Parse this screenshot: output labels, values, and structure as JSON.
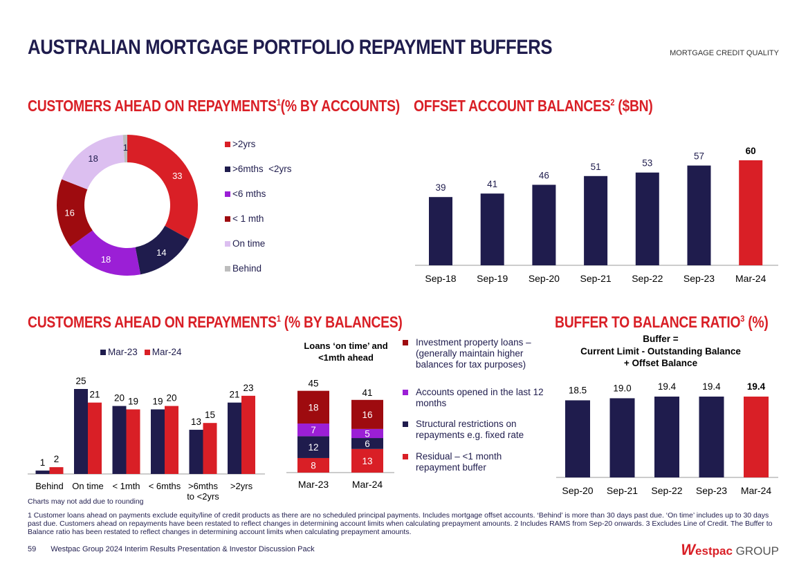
{
  "page": {
    "title": "AUSTRALIAN MORTGAGE PORTFOLIO REPAYMENT BUFFERS",
    "section": "MORTGAGE CREDIT QUALITY",
    "rounding_note": "Charts may not add due to rounding",
    "footnote": "1 Customer loans ahead on payments exclude equity/line of credit products as there are no scheduled principal payments. Includes mortgage offset accounts. ‘Behind’ is more than 30 days past due. ‘On time’ includes up to 30 days past due. Customers ahead on repayments have been restated to reflect changes in determining account limits when calculating prepayment amounts. 2 Includes RAMS from Sep-20 onwards. 3 Excludes Line of Credit. The Buffer to Balance ratio has been restated to reflect changes in determining account limits when calculating prepayment amounts.",
    "page_number": "59",
    "footer_text": "Westpac Group 2024 Interim Results Presentation & Investor Discussion Pack",
    "logo_w": "W",
    "logo_main": "estpac",
    "logo_group": "GROUP"
  },
  "colors": {
    "navy": "#1f1c4d",
    "red": "#d91f26",
    "purple": "#9b1fd6",
    "darkred": "#9e0b0f",
    "lilac": "#dcbff0",
    "grey": "#bdbdbd"
  },
  "chart_data": [
    {
      "id": "donut",
      "type": "pie",
      "title": "CUSTOMERS AHEAD ON REPAYMENTS",
      "title_sup": "1",
      "title_suffix": "(% BY ACCOUNTS)",
      "categories": [
        ">2yrs",
        ">6mths  <2yrs",
        "<6 mths",
        "< 1 mth",
        "On time",
        "Behind"
      ],
      "values": [
        33,
        14,
        18,
        16,
        18,
        1
      ],
      "colors": [
        "#d91f26",
        "#1f1c4d",
        "#9b1fd6",
        "#9e0b0f",
        "#dcbff0",
        "#bdbdbd"
      ]
    },
    {
      "id": "offset",
      "type": "bar",
      "title": "OFFSET ACCOUNT BALANCES",
      "title_sup": "2",
      "title_suffix": " ($BN)",
      "categories": [
        "Sep-18",
        "Sep-19",
        "Sep-20",
        "Sep-21",
        "Sep-22",
        "Sep-23",
        "Mar-24"
      ],
      "values": [
        39,
        41,
        46,
        51,
        53,
        57,
        60
      ],
      "ylim": [
        0,
        63
      ]
    },
    {
      "id": "balances",
      "type": "bar",
      "title": "CUSTOMERS AHEAD ON REPAYMENTS",
      "title_sup": "1",
      "title_suffix": " (% BY BALANCES)",
      "categories": [
        "Behind",
        "On time",
        "< 1mth",
        "< 6mths",
        ">6mths to <2yrs",
        ">2yrs"
      ],
      "series": [
        {
          "name": "Mar-23",
          "values": [
            1,
            25,
            20,
            19,
            13,
            21
          ]
        },
        {
          "name": "Mar-24",
          "values": [
            2,
            21,
            19,
            20,
            15,
            23
          ]
        }
      ],
      "ylim": [
        0,
        25
      ]
    },
    {
      "id": "stacked",
      "type": "bar",
      "title": "Loans ‘on time’ and <1mth ahead",
      "categories": [
        "Mar-23",
        "Mar-24"
      ],
      "totals": [
        45,
        41
      ],
      "series": [
        {
          "name": "Residual – <1 month repayment buffer",
          "values": [
            8,
            13
          ]
        },
        {
          "name": "Structural restrictions on repayments e.g. fixed rate",
          "values": [
            12,
            6
          ]
        },
        {
          "name": "Accounts opened in the last 12 months",
          "values": [
            7,
            5
          ]
        },
        {
          "name": "Investment property loans – (generally maintain higher balances for tax purposes)",
          "values": [
            18,
            16
          ]
        }
      ],
      "legend_order": [
        3,
        2,
        1,
        0
      ],
      "ylim": [
        0,
        45
      ]
    },
    {
      "id": "buffer",
      "type": "bar",
      "title": "BUFFER TO BALANCE RATIO",
      "title_sup": "3",
      "title_suffix": " (%)",
      "subtitle": [
        "Buffer =",
        "Current Limit - Outstanding Balance",
        "+ Offset Balance"
      ],
      "categories": [
        "Sep-20",
        "Sep-21",
        "Sep-22",
        "Sep-23",
        "Mar-24"
      ],
      "values": [
        18.5,
        19.0,
        19.4,
        19.4,
        19.4
      ],
      "value_labels": [
        "18.5",
        "19.0",
        "19.4",
        "19.4",
        "19.4"
      ],
      "ylim": [
        0,
        19.4
      ]
    }
  ]
}
